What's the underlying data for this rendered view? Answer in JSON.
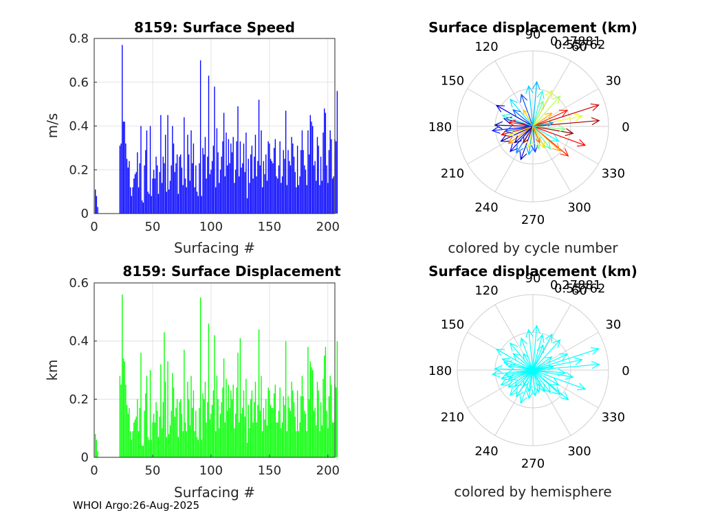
{
  "footer": "WHOI Argo:26-Aug-2025",
  "chart_data": [
    {
      "type": "bar",
      "title": "8159: Surface Speed",
      "xlabel": "Surfacing #",
      "ylabel": "m/s",
      "xlim": [
        0,
        206
      ],
      "ylim": [
        0,
        0.8
      ],
      "xticks": [
        0,
        50,
        100,
        150,
        200
      ],
      "yticks": [
        0,
        0.2,
        0.4,
        0.6,
        0.8
      ],
      "ytick_labels": [
        "0",
        "0.2",
        "0.4",
        "0.6",
        "0.8"
      ],
      "color": "#0000FF",
      "x_start": 1,
      "values": [
        0.11,
        0.08,
        0.03,
        0,
        0,
        0,
        0,
        0,
        0,
        0,
        0,
        0,
        0,
        0,
        0,
        0,
        0,
        0,
        0,
        0,
        0,
        0.31,
        0.32,
        0.77,
        0.42,
        0.42,
        0.32,
        0.25,
        0.21,
        0.24,
        0.12,
        0.08,
        0.12,
        0.16,
        0.18,
        0.19,
        0.28,
        0.12,
        0.23,
        0.4,
        0.06,
        0.05,
        0.22,
        0.29,
        0.38,
        0.1,
        0.09,
        0.4,
        0.08,
        0.16,
        0.2,
        0.16,
        0.26,
        0.22,
        0.09,
        0.19,
        0.45,
        0.14,
        0.26,
        0.23,
        0.36,
        0.1,
        0.45,
        0.11,
        0.15,
        0.22,
        0.4,
        0.32,
        0.19,
        0.23,
        0.27,
        0.09,
        0.26,
        0.27,
        0.21,
        0.13,
        0.44,
        0.16,
        0.12,
        0.36,
        0.27,
        0.15,
        0.38,
        0.23,
        0.32,
        0.12,
        0.22,
        0.1,
        0.08,
        0.23,
        0.7,
        0.08,
        0.3,
        0.27,
        0.35,
        0.16,
        0.26,
        0.63,
        0.18,
        0.2,
        0.24,
        0.31,
        0.58,
        0.12,
        0.39,
        0.28,
        0.14,
        0.2,
        0.26,
        0.33,
        0.46,
        0.17,
        0.37,
        0.22,
        0.34,
        0.23,
        0.32,
        0.28,
        0.35,
        0.14,
        0.2,
        0.33,
        0.49,
        0.17,
        0.33,
        0.21,
        0.23,
        0.32,
        0.19,
        0.37,
        0.07,
        0.25,
        0.14,
        0.27,
        0.31,
        0.16,
        0.26,
        0.36,
        0.17,
        0.24,
        0.52,
        0.22,
        0.38,
        0.12,
        0.24,
        0.18,
        0.27,
        0.15,
        0.33,
        0.32,
        0.25,
        0.24,
        0.23,
        0.3,
        0.34,
        0.17,
        0.16,
        0.22,
        0.33,
        0.14,
        0.17,
        0.29,
        0.25,
        0.47,
        0.13,
        0.29,
        0.24,
        0.22,
        0.35,
        0.32,
        0.26,
        0.19,
        0.12,
        0.31,
        0.13,
        0.17,
        0.29,
        0.38,
        0.29,
        0.22,
        0.2,
        0.13,
        0.38,
        0.27,
        0.45,
        0.42,
        0.4,
        0.22,
        0.24,
        0.15,
        0.35,
        0.31,
        0.13,
        0.26,
        0.15,
        0.37,
        0.48,
        0.46,
        0.22,
        0.14,
        0.29,
        0.38,
        0.34,
        0.16,
        0.17,
        0.34,
        0.33,
        0.56
      ]
    },
    {
      "type": "bar",
      "title": "8159: Surface Displacement",
      "xlabel": "Surfacing #",
      "ylabel": "km",
      "xlim": [
        0,
        206
      ],
      "ylim": [
        0,
        0.6
      ],
      "xticks": [
        0,
        50,
        100,
        150,
        200
      ],
      "yticks": [
        0,
        0.2,
        0.4,
        0.6
      ],
      "ytick_labels": [
        "0",
        "0.2",
        "0.4",
        "0.6"
      ],
      "color": "#00FF00",
      "x_start": 1,
      "values": [
        0.08,
        0.06,
        0.02,
        0,
        0,
        0,
        0,
        0,
        0,
        0,
        0,
        0,
        0,
        0,
        0,
        0,
        0,
        0,
        0,
        0,
        0,
        0.28,
        0.25,
        0.56,
        0.34,
        0.33,
        0.25,
        0.18,
        0.15,
        0.17,
        0.09,
        0.06,
        0.09,
        0.12,
        0.13,
        0.14,
        0.2,
        0.09,
        0.17,
        0.36,
        0.04,
        0.04,
        0.16,
        0.22,
        0.28,
        0.07,
        0.06,
        0.3,
        0.06,
        0.12,
        0.15,
        0.12,
        0.19,
        0.16,
        0.07,
        0.14,
        0.32,
        0.1,
        0.19,
        0.43,
        0.26,
        0.07,
        0.33,
        0.08,
        0.11,
        0.16,
        0.29,
        0.24,
        0.14,
        0.17,
        0.2,
        0.07,
        0.19,
        0.2,
        0.15,
        0.09,
        0.37,
        0.12,
        0.09,
        0.26,
        0.2,
        0.11,
        0.28,
        0.17,
        0.23,
        0.09,
        0.16,
        0.07,
        0.06,
        0.17,
        0.55,
        0.06,
        0.22,
        0.2,
        0.26,
        0.12,
        0.19,
        0.46,
        0.13,
        0.15,
        0.18,
        0.23,
        0.42,
        0.09,
        0.28,
        0.2,
        0.1,
        0.15,
        0.19,
        0.24,
        0.34,
        0.12,
        0.27,
        0.16,
        0.25,
        0.17,
        0.23,
        0.2,
        0.25,
        0.1,
        0.15,
        0.24,
        0.36,
        0.12,
        0.41,
        0.15,
        0.17,
        0.23,
        0.14,
        0.27,
        0.05,
        0.18,
        0.1,
        0.2,
        0.23,
        0.12,
        0.19,
        0.26,
        0.12,
        0.18,
        0.44,
        0.16,
        0.28,
        0.09,
        0.17,
        0.13,
        0.2,
        0.11,
        0.24,
        0.23,
        0.18,
        0.17,
        0.17,
        0.22,
        0.25,
        0.12,
        0.12,
        0.16,
        0.24,
        0.1,
        0.12,
        0.21,
        0.18,
        0.4,
        0.09,
        0.21,
        0.17,
        0.16,
        0.26,
        0.23,
        0.19,
        0.14,
        0.09,
        0.23,
        0.09,
        0.12,
        0.21,
        0.28,
        0.21,
        0.16,
        0.15,
        0.09,
        0.38,
        0.2,
        0.33,
        0.31,
        0.3,
        0.16,
        0.17,
        0.11,
        0.26,
        0.23,
        0.09,
        0.19,
        0.11,
        0.27,
        0.35,
        0.38,
        0.16,
        0.1,
        0.21,
        0.28,
        0.25,
        0.12,
        0.12,
        0.25,
        0.24,
        0.4
      ]
    },
    {
      "type": "polar-compass",
      "title": "Surface displacement (km)",
      "caption": "colored by cycle number",
      "rmax": 0.55762,
      "ring_labels": [
        "0.27881",
        "0.55762"
      ],
      "angle_labels": [
        "0",
        "30",
        "60",
        "90",
        "120",
        "150",
        "180",
        "210",
        "240",
        "270",
        "300",
        "330"
      ],
      "colormap": "jet",
      "arrows": [
        {
          "dir": 5,
          "r": 0.49,
          "cycle": 0.96
        },
        {
          "dir": 18,
          "r": 0.51,
          "cycle": 0.92
        },
        {
          "dir": 25,
          "r": 0.28,
          "cycle": 0.85
        },
        {
          "dir": 340,
          "r": 0.41,
          "cycle": 0.88
        },
        {
          "dir": 320,
          "r": 0.34,
          "cycle": 0.84
        },
        {
          "dir": 12,
          "r": 0.37,
          "cycle": 0.6
        },
        {
          "dir": 48,
          "r": 0.3,
          "cycle": 0.55
        },
        {
          "dir": 62,
          "r": 0.3,
          "cycle": 0.6
        },
        {
          "dir": 75,
          "r": 0.27,
          "cycle": 0.4
        },
        {
          "dir": 85,
          "r": 0.33,
          "cycle": 0.3
        },
        {
          "dir": 96,
          "r": 0.3,
          "cycle": 0.33
        },
        {
          "dir": 110,
          "r": 0.25,
          "cycle": 0.2
        },
        {
          "dir": 130,
          "r": 0.26,
          "cycle": 0.35
        },
        {
          "dir": 150,
          "r": 0.31,
          "cycle": 0.1
        },
        {
          "dir": 165,
          "r": 0.22,
          "cycle": 0.05
        },
        {
          "dir": 178,
          "r": 0.28,
          "cycle": 0.02
        },
        {
          "dir": 186,
          "r": 0.3,
          "cycle": 0.15
        },
        {
          "dir": 195,
          "r": 0.24,
          "cycle": 0.9
        },
        {
          "dir": 205,
          "r": 0.26,
          "cycle": 0.04
        },
        {
          "dir": 215,
          "r": 0.22,
          "cycle": 0.75
        },
        {
          "dir": 228,
          "r": 0.25,
          "cycle": 0.12
        },
        {
          "dir": 238,
          "r": 0.23,
          "cycle": 0.25
        },
        {
          "dir": 250,
          "r": 0.26,
          "cycle": 0.08
        },
        {
          "dir": 262,
          "r": 0.21,
          "cycle": 0.3
        },
        {
          "dir": 275,
          "r": 0.19,
          "cycle": 0.18
        },
        {
          "dir": 285,
          "r": 0.17,
          "cycle": 0.5
        },
        {
          "dir": 298,
          "r": 0.18,
          "cycle": 0.65
        },
        {
          "dir": 308,
          "r": 0.21,
          "cycle": 0.45
        },
        {
          "dir": 350,
          "r": 0.3,
          "cycle": 0.98
        },
        {
          "dir": 35,
          "r": 0.17,
          "cycle": 0.7
        },
        {
          "dir": 140,
          "r": 0.19,
          "cycle": 0.22
        },
        {
          "dir": 160,
          "r": 0.24,
          "cycle": 0.42
        },
        {
          "dir": 200,
          "r": 0.19,
          "cycle": 0.62
        },
        {
          "dir": 240,
          "r": 0.14,
          "cycle": 0.95
        },
        {
          "dir": 330,
          "r": 0.22,
          "cycle": 0.38
        },
        {
          "dir": 355,
          "r": 0.24,
          "cycle": 0.5
        },
        {
          "dir": 10,
          "r": 0.15,
          "cycle": 0.28
        },
        {
          "dir": 120,
          "r": 0.14,
          "cycle": 0.68
        },
        {
          "dir": 170,
          "r": 0.18,
          "cycle": 0.88
        },
        {
          "dir": 222,
          "r": 0.18,
          "cycle": 0.03
        },
        {
          "dir": 292,
          "r": 0.13,
          "cycle": 0.78
        },
        {
          "dir": 68,
          "r": 0.2,
          "cycle": 0.48
        },
        {
          "dir": 318,
          "r": 0.27,
          "cycle": 0.72
        },
        {
          "dir": 190,
          "r": 0.21,
          "cycle": 0.2
        },
        {
          "dir": 258,
          "r": 0.16,
          "cycle": 0.6
        }
      ]
    },
    {
      "type": "polar-compass",
      "title": "Surface displacement (km)",
      "caption": "colored by hemisphere",
      "rmax": 0.55762,
      "ring_labels": [
        "0.27881",
        "0.55762"
      ],
      "angle_labels": [
        "0",
        "30",
        "60",
        "90",
        "120",
        "150",
        "180",
        "210",
        "240",
        "270",
        "300",
        "330"
      ],
      "arrow_color": "#00FFFF",
      "arrows": [
        {
          "dir": 5,
          "r": 0.49
        },
        {
          "dir": 18,
          "r": 0.51
        },
        {
          "dir": 25,
          "r": 0.28
        },
        {
          "dir": 340,
          "r": 0.41
        },
        {
          "dir": 320,
          "r": 0.34
        },
        {
          "dir": 12,
          "r": 0.37
        },
        {
          "dir": 48,
          "r": 0.3
        },
        {
          "dir": 62,
          "r": 0.3
        },
        {
          "dir": 75,
          "r": 0.27
        },
        {
          "dir": 85,
          "r": 0.33
        },
        {
          "dir": 96,
          "r": 0.3
        },
        {
          "dir": 110,
          "r": 0.25
        },
        {
          "dir": 130,
          "r": 0.26
        },
        {
          "dir": 150,
          "r": 0.31
        },
        {
          "dir": 165,
          "r": 0.22
        },
        {
          "dir": 178,
          "r": 0.28
        },
        {
          "dir": 186,
          "r": 0.3
        },
        {
          "dir": 195,
          "r": 0.24
        },
        {
          "dir": 205,
          "r": 0.26
        },
        {
          "dir": 215,
          "r": 0.22
        },
        {
          "dir": 228,
          "r": 0.25
        },
        {
          "dir": 238,
          "r": 0.23
        },
        {
          "dir": 250,
          "r": 0.26
        },
        {
          "dir": 262,
          "r": 0.21
        },
        {
          "dir": 275,
          "r": 0.19
        },
        {
          "dir": 285,
          "r": 0.17
        },
        {
          "dir": 298,
          "r": 0.18
        },
        {
          "dir": 308,
          "r": 0.21
        },
        {
          "dir": 350,
          "r": 0.3
        },
        {
          "dir": 35,
          "r": 0.17
        },
        {
          "dir": 140,
          "r": 0.19
        },
        {
          "dir": 160,
          "r": 0.24
        },
        {
          "dir": 200,
          "r": 0.19
        },
        {
          "dir": 240,
          "r": 0.14
        },
        {
          "dir": 330,
          "r": 0.22
        },
        {
          "dir": 355,
          "r": 0.24
        },
        {
          "dir": 10,
          "r": 0.15
        },
        {
          "dir": 120,
          "r": 0.14
        },
        {
          "dir": 170,
          "r": 0.18
        },
        {
          "dir": 222,
          "r": 0.18
        },
        {
          "dir": 292,
          "r": 0.13
        },
        {
          "dir": 68,
          "r": 0.2
        },
        {
          "dir": 318,
          "r": 0.27
        },
        {
          "dir": 190,
          "r": 0.21
        },
        {
          "dir": 258,
          "r": 0.16
        }
      ]
    }
  ]
}
